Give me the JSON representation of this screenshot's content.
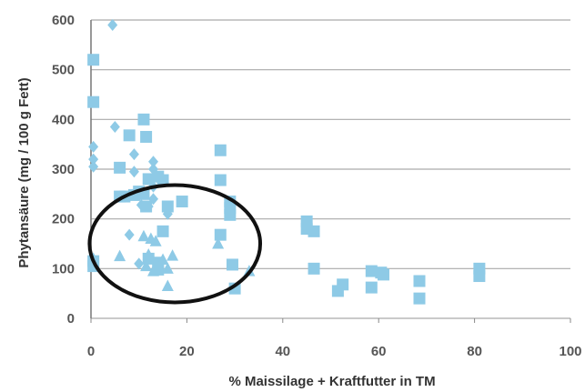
{
  "chart_data": {
    "type": "scatter",
    "title": "",
    "xlabel": "% Maissilage + Kraftfutter in TM",
    "ylabel": "Phytansäure (mg / 100 g Fett)",
    "xlim": [
      0,
      100
    ],
    "ylim": [
      0,
      600
    ],
    "x_ticks": [
      "0",
      "20",
      "40",
      "60",
      "80",
      "100"
    ],
    "y_ticks": [
      "0",
      "100",
      "200",
      "300",
      "400",
      "500",
      "600"
    ],
    "grid": "horizontal",
    "legend": "none",
    "marker_color": "#8ecae6",
    "annotation_color": "#111111",
    "annotation": {
      "shape": "ellipse",
      "cx": 17.5,
      "cy": 150,
      "rx": 17.8,
      "ry": 118
    },
    "series": [
      {
        "marker": "diamond",
        "points": [
          [
            4.5,
            590
          ],
          [
            5,
            385
          ],
          [
            0.5,
            345
          ],
          [
            0.5,
            320
          ],
          [
            0.5,
            305
          ],
          [
            9,
            330
          ],
          [
            9,
            295
          ],
          [
            13,
            315
          ],
          [
            13,
            300
          ],
          [
            13,
            265
          ],
          [
            8,
            168
          ],
          [
            12,
            225
          ],
          [
            16,
            220
          ],
          [
            16,
            210
          ],
          [
            14,
            108
          ],
          [
            10,
            110
          ],
          [
            12,
            120
          ],
          [
            13,
            240
          ],
          [
            10.5,
            228
          ]
        ]
      },
      {
        "marker": "square",
        "points": [
          [
            0.5,
            520
          ],
          [
            0.5,
            435
          ],
          [
            0.5,
            115
          ],
          [
            0.5,
            105
          ],
          [
            11,
            400
          ],
          [
            8,
            368
          ],
          [
            11.5,
            365
          ],
          [
            6,
            303
          ],
          [
            6,
            245
          ],
          [
            7,
            245
          ],
          [
            9,
            248
          ],
          [
            10,
            255
          ],
          [
            11,
            250
          ],
          [
            12,
            280
          ],
          [
            14,
            285
          ],
          [
            15,
            278
          ],
          [
            11.5,
            225
          ],
          [
            19,
            235
          ],
          [
            16,
            225
          ],
          [
            15,
            175
          ],
          [
            14,
            112
          ],
          [
            14,
            98
          ],
          [
            12,
            120
          ],
          [
            27,
            338
          ],
          [
            27,
            278
          ],
          [
            29,
            235
          ],
          [
            29,
            222
          ],
          [
            29,
            208
          ],
          [
            27,
            168
          ],
          [
            29.5,
            108
          ],
          [
            30,
            60
          ],
          [
            45,
            195
          ],
          [
            45,
            180
          ],
          [
            46.5,
            175
          ],
          [
            46.5,
            100
          ],
          [
            51.5,
            55
          ],
          [
            52.5,
            68
          ],
          [
            58.5,
            95
          ],
          [
            60.5,
            92
          ],
          [
            61,
            88
          ],
          [
            58.5,
            62
          ],
          [
            68.5,
            75
          ],
          [
            68.5,
            40
          ],
          [
            81,
            100
          ],
          [
            81,
            85
          ]
        ]
      },
      {
        "marker": "triangle",
        "points": [
          [
            0.5,
            120
          ],
          [
            6,
            125
          ],
          [
            11,
            165
          ],
          [
            12.5,
            160
          ],
          [
            13.5,
            155
          ],
          [
            12,
            128
          ],
          [
            15,
            118
          ],
          [
            17,
            126
          ],
          [
            11.5,
            105
          ],
          [
            13,
            95
          ],
          [
            16,
            100
          ],
          [
            16,
            65
          ],
          [
            26.5,
            150
          ],
          [
            33,
            95
          ]
        ]
      }
    ]
  }
}
